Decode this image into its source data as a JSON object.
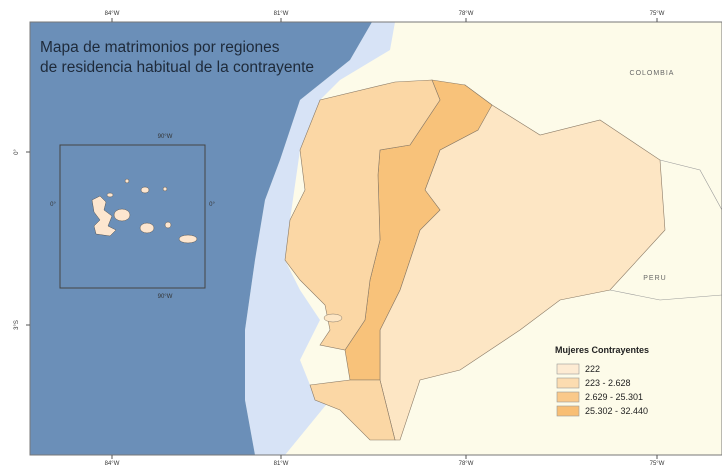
{
  "title": {
    "lines": [
      "Mapa de matrimonios por regiones",
      "de residencia habitual de la contrayente"
    ]
  },
  "graticule": {
    "top": [
      "84°W",
      "81°W",
      "78°W",
      "75°W"
    ],
    "bottom": [
      "84°W",
      "81°W",
      "78°W",
      "75°W"
    ],
    "left": [
      "0°",
      "3°S"
    ]
  },
  "inset": {
    "top": "90°W",
    "bottom": "90°W",
    "left": "0°",
    "right": "0°"
  },
  "countries": [
    "COLOMBIA",
    "PERU"
  ],
  "legend": {
    "title": "Mujeres Contrayentes",
    "items": [
      {
        "label": "222",
        "color": "#fdebd3"
      },
      {
        "label": "223 - 2.628",
        "color": "#fcdcb0"
      },
      {
        "label": "2.629 - 25.301",
        "color": "#fac98a"
      },
      {
        "label": "25.302 - 32.440",
        "color": "#f8be74"
      }
    ]
  }
}
